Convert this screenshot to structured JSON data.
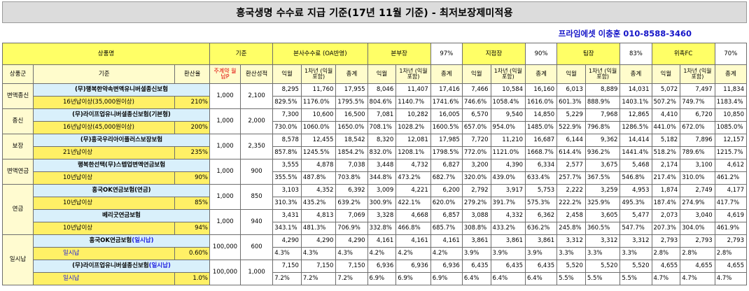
{
  "title": "흥국생명 수수료 지급 기준(17년 11월 기준) - 최저보장제미적용",
  "contact": "프라임에셋 이충훈 010-8588-3460",
  "header": {
    "product_name": "상품명",
    "basis": "기준",
    "hq": "본사수수료 (OA반영)",
    "head": "본부장",
    "head_pct": "97%",
    "branch": "지점장",
    "branch_pct": "90%",
    "team": "팀장",
    "team_pct": "83%",
    "fc": "위촉FC",
    "fc_pct": "70%",
    "group": "상품군",
    "criteria": "기준",
    "conv": "환산율",
    "main_contract": "주계약 월납P",
    "conv_perf": "환산성적",
    "m1": "익월",
    "y1": "1차년 (익월포함)",
    "total": "총계"
  },
  "groups": [
    {
      "name": "변액종신",
      "start": 0,
      "span": 1
    },
    {
      "name": "종신",
      "start": 1,
      "span": 1
    },
    {
      "name": "보장",
      "start": 2,
      "span": 1
    },
    {
      "name": "변액연금",
      "start": 3,
      "span": 1
    },
    {
      "name": "연금",
      "start": 4,
      "span": 2
    },
    {
      "name": "일시납",
      "start": 6,
      "span": 2
    }
  ],
  "products": [
    {
      "name": "(무)행복한약속변액유니버셜종신보험",
      "cond": "16년납이상(35,000원이상)",
      "rate": "210%",
      "premium": "1,000",
      "perf": "2,100",
      "v": [
        "8,295",
        "11,760",
        "17,955",
        "8,046",
        "11,407",
        "17,416",
        "7,466",
        "10,584",
        "16,160",
        "6,013",
        "8,889",
        "14,031",
        "5,072",
        "7,497",
        "11,834"
      ],
      "p": [
        "829.5%",
        "1176.0%",
        "1795.5%",
        "804.6%",
        "1140.7%",
        "1741.6%",
        "746.6%",
        "1058.4%",
        "1616.0%",
        "601.3%",
        "888.9%",
        "1403.1%",
        "507.2%",
        "749.7%",
        "1183.4%"
      ]
    },
    {
      "name": "(무)라이프업유니버셜종신보험(기본형)",
      "cond": "16년납이상(45,000원이상)",
      "rate": "200%",
      "premium": "1,000",
      "perf": "2,000",
      "v": [
        "7,300",
        "10,600",
        "16,500",
        "7,081",
        "10,282",
        "16,005",
        "6,570",
        "9,540",
        "14,850",
        "5,229",
        "7,968",
        "12,865",
        "4,410",
        "6,720",
        "10,850"
      ],
      "p": [
        "730.0%",
        "1060.0%",
        "1650.0%",
        "708.1%",
        "1028.2%",
        "1600.5%",
        "657.0%",
        "954.0%",
        "1485.0%",
        "522.9%",
        "796.8%",
        "1286.5%",
        "441.0%",
        "672.0%",
        "1085.0%"
      ]
    },
    {
      "name": "(무)흥국우리아이플러스보장보험",
      "cond": "21년납이상",
      "rate": "235%",
      "premium": "1,000",
      "perf": "2,350",
      "v": [
        "8,578",
        "12,455",
        "18,542",
        "8,320",
        "12,081",
        "17,985",
        "7,720",
        "11,210",
        "16,687",
        "6,144",
        "9,362",
        "14,414",
        "5,182",
        "7,896",
        "12,157"
      ],
      "p": [
        "857.8%",
        "1245.5%",
        "1854.2%",
        "832.0%",
        "1208.1%",
        "1798.5%",
        "772.0%",
        "1121.0%",
        "1668.7%",
        "614.4%",
        "936.2%",
        "1441.4%",
        "518.2%",
        "789.6%",
        "1215.7%"
      ]
    },
    {
      "name": "행복한선택(무)스텝업변액연금보험",
      "cond": "10년납이상",
      "rate": "90%",
      "premium": "1,000",
      "perf": "900",
      "v": [
        "3,555",
        "4,878",
        "7,038",
        "3,448",
        "4,732",
        "6,827",
        "3,200",
        "4,390",
        "6,334",
        "2,577",
        "3,675",
        "5,468",
        "2,174",
        "3,100",
        "4,612"
      ],
      "p": [
        "355.5%",
        "487.8%",
        "703.8%",
        "344.8%",
        "473.2%",
        "682.7%",
        "320.0%",
        "439.0%",
        "633.4%",
        "257.7%",
        "367.5%",
        "546.8%",
        "217.4%",
        "310.0%",
        "461.2%"
      ]
    },
    {
      "name": "흥국OK연금보험(연금)",
      "cond": "10년납이상",
      "rate": "85%",
      "premium": "1,000",
      "perf": "850",
      "v": [
        "3,103",
        "4,352",
        "6,392",
        "3,009",
        "4,221",
        "6,200",
        "2,792",
        "3,917",
        "5,753",
        "2,222",
        "3,259",
        "4,953",
        "1,874",
        "2,749",
        "4,177"
      ],
      "p": [
        "310.3%",
        "435.2%",
        "639.2%",
        "300.9%",
        "422.1%",
        "620.0%",
        "279.2%",
        "391.7%",
        "575.3%",
        "222.2%",
        "325.9%",
        "495.3%",
        "187.4%",
        "274.9%",
        "417.7%"
      ]
    },
    {
      "name": "베리굿연금보험",
      "cond": "10년납이상",
      "rate": "94%",
      "premium": "1,000",
      "perf": "940",
      "v": [
        "3,431",
        "4,813",
        "7,069",
        "3,328",
        "4,668",
        "6,857",
        "3,088",
        "4,332",
        "6,362",
        "2,458",
        "3,605",
        "5,477",
        "2,073",
        "3,040",
        "4,619"
      ],
      "p": [
        "343.1%",
        "481.3%",
        "706.9%",
        "332.8%",
        "466.8%",
        "685.7%",
        "308.8%",
        "433.2%",
        "636.2%",
        "245.8%",
        "360.5%",
        "547.7%",
        "207.3%",
        "304.0%",
        "461.9%"
      ]
    },
    {
      "name": "흥국OK연금보험",
      "name_suffix": "(일시납)",
      "cond": "일시납",
      "rate": "0.60%",
      "premium": "100,000",
      "perf": "600",
      "v": [
        "4,290",
        "4,290",
        "4,290",
        "4,161",
        "4,161",
        "4,161",
        "3,861",
        "3,861",
        "3,861",
        "3,312",
        "3,312",
        "3,312",
        "2,793",
        "2,793",
        "2,793"
      ],
      "p": [
        "4.3%",
        "4.3%",
        "4.3%",
        "4.2%",
        "4.2%",
        "4.2%",
        "3.9%",
        "3.9%",
        "3.9%",
        "3.3%",
        "3.3%",
        "3.3%",
        "2.8%",
        "2.8%",
        "2.8%"
      ]
    },
    {
      "name": "(무)라이프업유니버셜종신보험",
      "name_suffix": "(일시납)",
      "cond": "일시납",
      "rate": "1.0%",
      "premium": "100,000",
      "perf": "1,000",
      "v": [
        "7,150",
        "7,150",
        "7,150",
        "6,936",
        "6,936",
        "6,936",
        "6,435",
        "6,435",
        "6,435",
        "5,520",
        "5,520",
        "5,520",
        "4,655",
        "4,655",
        "4,655"
      ],
      "p": [
        "7.2%",
        "7.2%",
        "7.2%",
        "6.9%",
        "6.9%",
        "6.9%",
        "6.4%",
        "6.4%",
        "6.4%",
        "5.5%",
        "5.5%",
        "5.5%",
        "4.7%",
        "4.7%",
        "4.7%"
      ]
    }
  ]
}
